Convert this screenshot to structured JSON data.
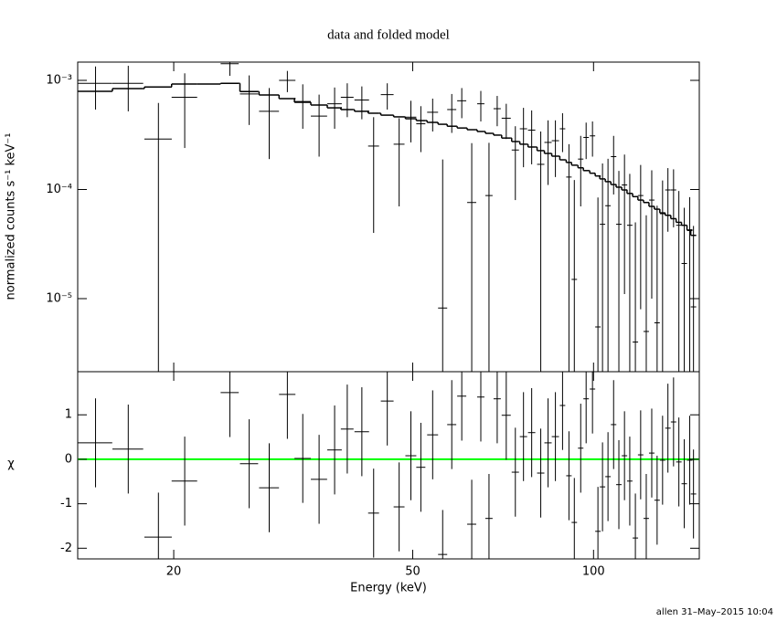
{
  "chart_data": [
    {
      "type": "errorbar",
      "title": "data and folded model",
      "y_label": "normalized counts s⁻¹ keV⁻¹",
      "ylog": true,
      "xlog": true,
      "color": "#000000",
      "xlim": [
        13.84,
        150
      ],
      "ylim": [
        2.14e-06,
        0.00147
      ],
      "yticks": [
        {
          "value": 0.001,
          "label": "10⁻³"
        },
        {
          "value": 0.0001,
          "label": "10⁻⁴"
        },
        {
          "value": 1e-05,
          "label": "10⁻⁵"
        }
      ],
      "x": [
        14.82,
        16.8,
        18.86,
        20.86,
        24.8,
        26.71,
        28.84,
        30.92,
        32.8,
        34.92,
        37.06,
        38.9,
        41.14,
        43.04,
        45.35,
        47.46,
        49.65,
        51.58,
        53.97,
        56.08,
        58.07,
        60.34,
        62.69,
        64.91,
        66.98,
        69.12,
        71.56,
        74.1,
        76.45,
        78.89,
        81.68,
        84.0,
        86.4,
        88.8,
        91.0,
        92.9,
        95.2,
        97.2,
        99.6,
        101.7,
        103.5,
        105.7,
        108.0,
        110.2,
        112.6,
        114.9,
        117.4,
        119.8,
        122.4,
        125.0,
        127.6,
        130.3,
        133.0,
        135.9,
        138.7,
        141.6,
        144.6,
        146.7
      ],
      "x_err": [
        0.98,
        0.99,
        0.99,
        1.02,
        0.86,
        0.93,
        1.1,
        0.97,
        1.03,
        1.09,
        1.03,
        0.95,
        1.15,
        0.9,
        1.11,
        0.99,
        1.04,
        0.9,
        1.13,
        0.98,
        1.01,
        1.05,
        1.09,
        0.9,
        0.93,
        0.96,
        1.25,
        1.03,
        1.07,
        1.1,
        1.14,
        1.17,
        1.2,
        0.93,
        0.95,
        0.97,
        0.99,
        1.02,
        1.04,
        1.06,
        1.08,
        1.1,
        1.13,
        1.15,
        1.18,
        1.2,
        1.23,
        1.25,
        1.28,
        1.31,
        1.33,
        1.36,
        1.39,
        1.42,
        1.45,
        1.48,
        1.51,
        1.53
      ],
      "values": [
        0.00094,
        0.00094,
        0.00029,
        0.0007,
        0.00142,
        0.00075,
        0.00052,
        0.001,
        0.00064,
        0.00047,
        0.00061,
        0.0007,
        0.00066,
        0.00025,
        0.00074,
        0.00026,
        0.00046,
        0.0004,
        0.00051,
        8.2e-06,
        0.00054,
        0.00065,
        7.6e-05,
        0.00061,
        8.8e-05,
        0.00055,
        0.00045,
        0.00023,
        0.00036,
        0.00035,
        0.00017,
        0.00027,
        0.00028,
        0.00036,
        0.00013,
        1.5e-05,
        0.00019,
        0.0003,
        0.00031,
        5.5e-06,
        4.8e-05,
        7.1e-05,
        0.0002,
        4.8e-05,
        0.00011,
        4.7e-05,
        4e-06,
        8.8e-05,
        5e-06,
        8e-05,
        6e-06,
        6e-05,
        9.9e-05,
        9.9e-05,
        4.7e-05,
        2.1e-05,
        4.2e-05,
        8.4e-06
      ],
      "errors": [
        0.0004,
        0.00042,
        0.00033,
        0.00046,
        0.00032,
        0.00036,
        0.00033,
        0.00022,
        0.00028,
        0.00027,
        0.00025,
        0.00024,
        0.00022,
        0.00021,
        0.0002,
        0.00019,
        0.00019,
        0.00018,
        0.00017,
        0.00018,
        0.00021,
        0.0002,
        0.00019,
        0.00019,
        0.00018,
        0.00017,
        0.00016,
        0.00015,
        0.0002,
        0.00018,
        0.00017,
        0.00016,
        0.00015,
        0.00014,
        0.00013,
        0.000107,
        0.00012,
        0.00011,
        0.00011,
        7.9e-05,
        0.000125,
        0.00012,
        0.00011,
        0.0001,
        9.9e-05,
        9.2e-05,
        4.6e-05,
        8e-05,
        5.3e-05,
        7e-05,
        6.5e-05,
        6.1e-05,
        5.8e-05,
        5.4e-05,
        5e-05,
        4.7e-05,
        4.3e-05,
        3.8e-05
      ],
      "model": [
        0.000793,
        0.00084,
        0.00087,
        0.000926,
        0.00094,
        0.00079,
        0.000735,
        0.00068,
        0.00063,
        0.000595,
        0.00056,
        0.00054,
        0.00052,
        0.0005,
        0.00048,
        0.000463,
        0.000445,
        0.000428,
        0.000412,
        0.000396,
        0.00038,
        0.000366,
        0.000353,
        0.00034,
        0.000327,
        0.000315,
        0.000296,
        0.000275,
        0.00026,
        0.000245,
        0.000227,
        0.000214,
        0.000202,
        0.000187,
        0.000177,
        0.000167,
        0.000158,
        0.000149,
        0.000141,
        0.000133,
        0.000125,
        0.000118,
        0.000111,
        0.000105,
        9.9e-05,
        9.2e-05,
        8.6e-05,
        8e-05,
        7.6e-05,
        7e-05,
        6.6e-05,
        6.1e-05,
        5.8e-05,
        5.4e-05,
        5e-05,
        4.7e-05,
        4.25e-05,
        3.8e-05
      ]
    },
    {
      "type": "residual",
      "x_label": "Energy (keV)",
      "y_label": "χ",
      "xlog": true,
      "color": "#000000",
      "zero_color": "#00ff00",
      "xlim": [
        13.84,
        150
      ],
      "xticks": [
        20,
        50,
        100
      ],
      "ylim": [
        -2.24,
        1.97
      ],
      "yticks": [
        -2,
        -1,
        0,
        1
      ],
      "values": [
        0.37,
        0.23,
        -1.75,
        -0.49,
        1.5,
        -0.1,
        -0.64,
        1.46,
        0.02,
        -0.45,
        0.21,
        0.68,
        0.62,
        -1.21,
        1.31,
        -1.07,
        0.08,
        -0.18,
        0.55,
        -2.14,
        0.78,
        1.42,
        -1.46,
        1.4,
        -1.33,
        1.36,
        0.99,
        -0.29,
        0.51,
        0.6,
        -0.31,
        0.37,
        0.51,
        1.21,
        -0.37,
        -1.42,
        0.25,
        1.36,
        1.58,
        -1.62,
        -0.62,
        -0.39,
        0.78,
        -0.57,
        0.08,
        -0.49,
        -1.77,
        0.1,
        -1.33,
        0.14,
        -0.92,
        -0.02,
        0.7,
        0.84,
        -0.06,
        -0.55,
        -0.02,
        -0.78
      ],
      "errors": [
        1,
        1,
        1,
        1,
        1,
        1,
        1,
        1,
        1,
        1,
        1,
        1,
        1,
        1,
        1,
        1,
        1,
        1,
        1,
        1,
        1,
        1,
        1,
        1,
        1,
        1,
        1,
        1,
        1,
        1,
        1,
        1,
        1,
        1,
        1,
        1,
        1,
        1,
        1,
        1,
        1,
        1,
        1,
        1,
        1,
        1,
        1,
        1,
        1,
        1,
        1,
        1,
        1,
        1,
        1,
        1,
        1,
        1
      ]
    }
  ],
  "footer": "allen 31–May–2015 10:04"
}
